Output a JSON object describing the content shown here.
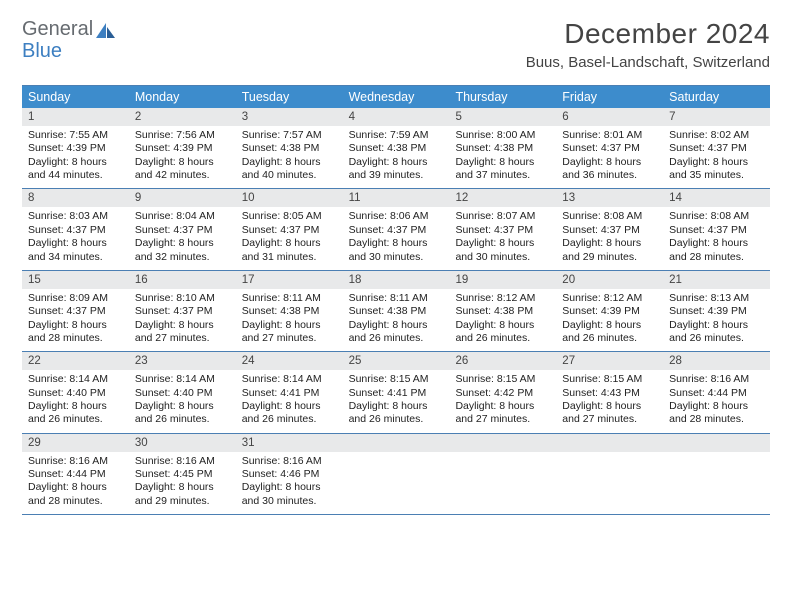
{
  "logo": {
    "word1": "General",
    "word2": "Blue"
  },
  "title": "December 2024",
  "location": "Buus, Basel-Landschaft, Switzerland",
  "colors": {
    "header_bg": "#3d8ccc",
    "header_fg": "#ffffff",
    "rule": "#4b7fb3",
    "daynum_bg": "#e8e9ea",
    "logo_gray": "#666b70",
    "logo_blue": "#3d7fc1",
    "text": "#222222"
  },
  "typography": {
    "title_pt": 28,
    "location_pt": 15,
    "weekday_pt": 12.5,
    "daynum_pt": 11.5,
    "body_pt": 10.5,
    "font": "Arial"
  },
  "weekdays": [
    "Sunday",
    "Monday",
    "Tuesday",
    "Wednesday",
    "Thursday",
    "Friday",
    "Saturday"
  ],
  "days": [
    {
      "n": "1",
      "sr": "7:55 AM",
      "ss": "4:39 PM",
      "dlh": "8",
      "dlm": "44"
    },
    {
      "n": "2",
      "sr": "7:56 AM",
      "ss": "4:39 PM",
      "dlh": "8",
      "dlm": "42"
    },
    {
      "n": "3",
      "sr": "7:57 AM",
      "ss": "4:38 PM",
      "dlh": "8",
      "dlm": "40"
    },
    {
      "n": "4",
      "sr": "7:59 AM",
      "ss": "4:38 PM",
      "dlh": "8",
      "dlm": "39"
    },
    {
      "n": "5",
      "sr": "8:00 AM",
      "ss": "4:38 PM",
      "dlh": "8",
      "dlm": "37"
    },
    {
      "n": "6",
      "sr": "8:01 AM",
      "ss": "4:37 PM",
      "dlh": "8",
      "dlm": "36"
    },
    {
      "n": "7",
      "sr": "8:02 AM",
      "ss": "4:37 PM",
      "dlh": "8",
      "dlm": "35"
    },
    {
      "n": "8",
      "sr": "8:03 AM",
      "ss": "4:37 PM",
      "dlh": "8",
      "dlm": "34"
    },
    {
      "n": "9",
      "sr": "8:04 AM",
      "ss": "4:37 PM",
      "dlh": "8",
      "dlm": "32"
    },
    {
      "n": "10",
      "sr": "8:05 AM",
      "ss": "4:37 PM",
      "dlh": "8",
      "dlm": "31"
    },
    {
      "n": "11",
      "sr": "8:06 AM",
      "ss": "4:37 PM",
      "dlh": "8",
      "dlm": "30"
    },
    {
      "n": "12",
      "sr": "8:07 AM",
      "ss": "4:37 PM",
      "dlh": "8",
      "dlm": "30"
    },
    {
      "n": "13",
      "sr": "8:08 AM",
      "ss": "4:37 PM",
      "dlh": "8",
      "dlm": "29"
    },
    {
      "n": "14",
      "sr": "8:08 AM",
      "ss": "4:37 PM",
      "dlh": "8",
      "dlm": "28"
    },
    {
      "n": "15",
      "sr": "8:09 AM",
      "ss": "4:37 PM",
      "dlh": "8",
      "dlm": "28"
    },
    {
      "n": "16",
      "sr": "8:10 AM",
      "ss": "4:37 PM",
      "dlh": "8",
      "dlm": "27"
    },
    {
      "n": "17",
      "sr": "8:11 AM",
      "ss": "4:38 PM",
      "dlh": "8",
      "dlm": "27"
    },
    {
      "n": "18",
      "sr": "8:11 AM",
      "ss": "4:38 PM",
      "dlh": "8",
      "dlm": "26"
    },
    {
      "n": "19",
      "sr": "8:12 AM",
      "ss": "4:38 PM",
      "dlh": "8",
      "dlm": "26"
    },
    {
      "n": "20",
      "sr": "8:12 AM",
      "ss": "4:39 PM",
      "dlh": "8",
      "dlm": "26"
    },
    {
      "n": "21",
      "sr": "8:13 AM",
      "ss": "4:39 PM",
      "dlh": "8",
      "dlm": "26"
    },
    {
      "n": "22",
      "sr": "8:14 AM",
      "ss": "4:40 PM",
      "dlh": "8",
      "dlm": "26"
    },
    {
      "n": "23",
      "sr": "8:14 AM",
      "ss": "4:40 PM",
      "dlh": "8",
      "dlm": "26"
    },
    {
      "n": "24",
      "sr": "8:14 AM",
      "ss": "4:41 PM",
      "dlh": "8",
      "dlm": "26"
    },
    {
      "n": "25",
      "sr": "8:15 AM",
      "ss": "4:41 PM",
      "dlh": "8",
      "dlm": "26"
    },
    {
      "n": "26",
      "sr": "8:15 AM",
      "ss": "4:42 PM",
      "dlh": "8",
      "dlm": "27"
    },
    {
      "n": "27",
      "sr": "8:15 AM",
      "ss": "4:43 PM",
      "dlh": "8",
      "dlm": "27"
    },
    {
      "n": "28",
      "sr": "8:16 AM",
      "ss": "4:44 PM",
      "dlh": "8",
      "dlm": "28"
    },
    {
      "n": "29",
      "sr": "8:16 AM",
      "ss": "4:44 PM",
      "dlh": "8",
      "dlm": "28"
    },
    {
      "n": "30",
      "sr": "8:16 AM",
      "ss": "4:45 PM",
      "dlh": "8",
      "dlm": "29"
    },
    {
      "n": "31",
      "sr": "8:16 AM",
      "ss": "4:46 PM",
      "dlh": "8",
      "dlm": "30"
    }
  ],
  "labels": {
    "sunrise": "Sunrise: ",
    "sunset": "Sunset: ",
    "daylight_pre": "Daylight: ",
    "daylight_mid": " hours and ",
    "daylight_suf": " minutes."
  },
  "layout": {
    "first_weekday_index": 0,
    "trailing_blanks": 4
  }
}
